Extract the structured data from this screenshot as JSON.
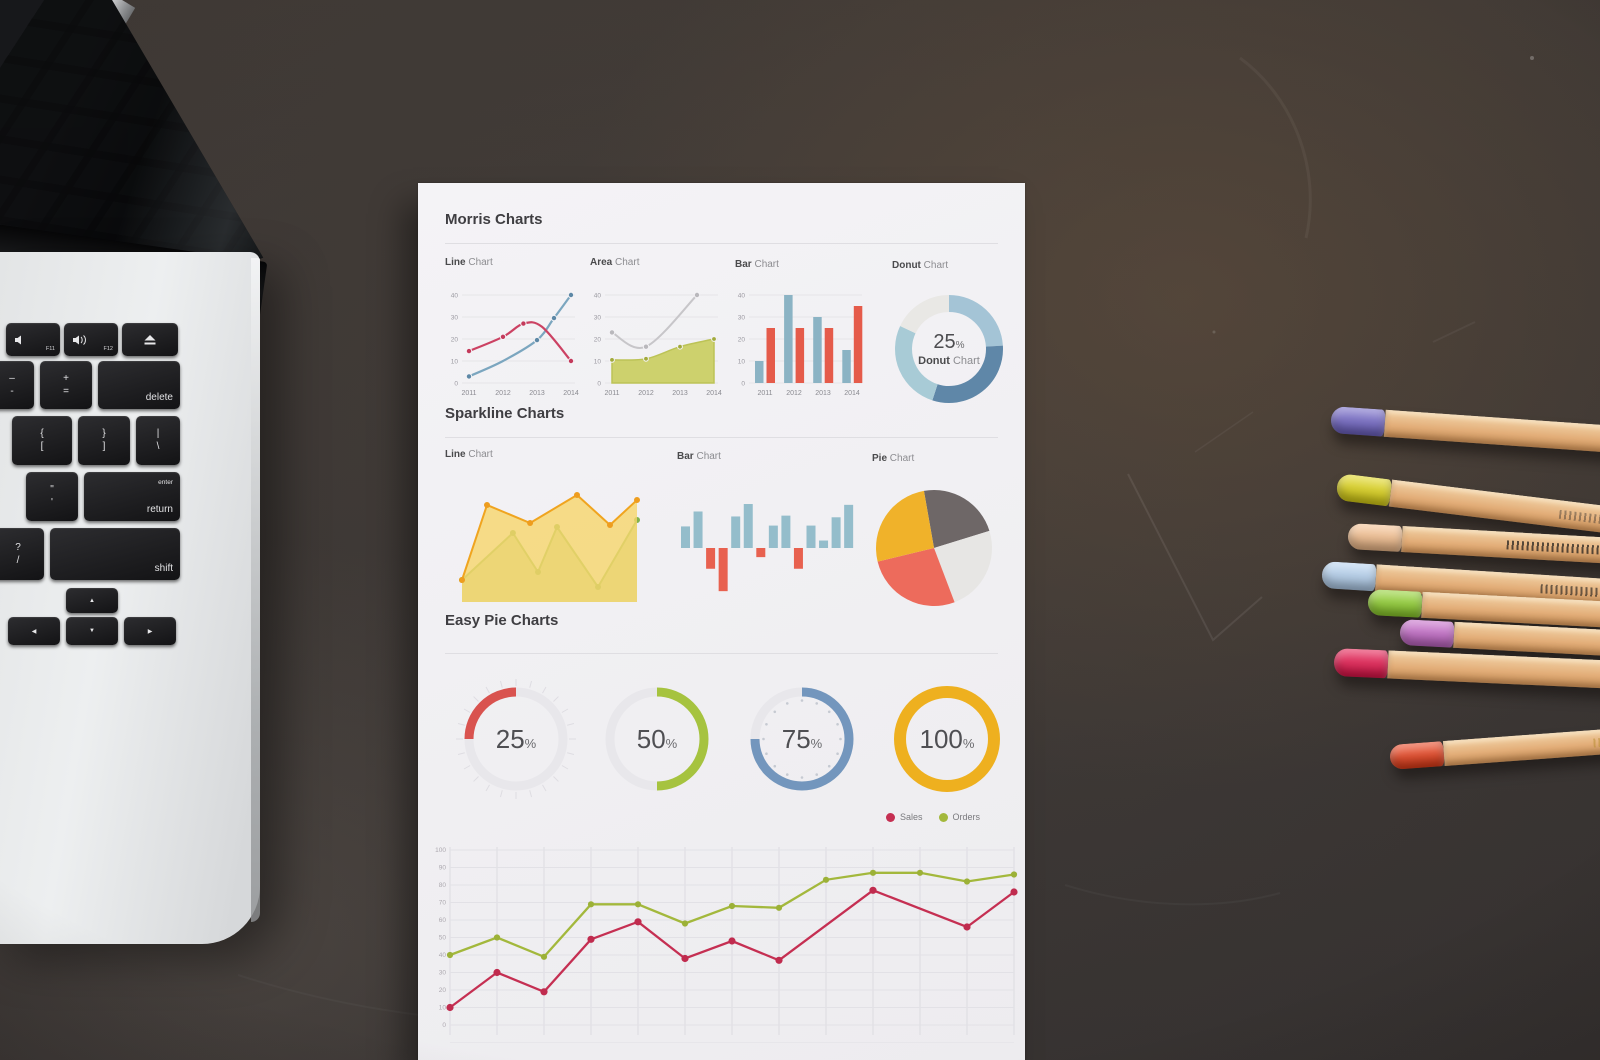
{
  "scene": {
    "desk_color": "#3e3834",
    "paper_color": "#f2f1f4"
  },
  "laptop": {
    "keys": {
      "f11": {
        "label": "F11",
        "icon": "volume-down-icon"
      },
      "f12": {
        "label": "F12",
        "icon": "volume-up-icon"
      },
      "eject": {
        "icon": "eject-icon"
      },
      "minus": {
        "top": "–",
        "bottom": "-"
      },
      "plus": {
        "top": "+",
        "bottom": "="
      },
      "delete": {
        "label": "delete"
      },
      "lbracket": {
        "top": "{",
        "bottom": "["
      },
      "rbracket": {
        "top": "}",
        "bottom": "]"
      },
      "backslash": {
        "top": "|",
        "bottom": "\\"
      },
      "quote": {
        "top": "\"",
        "bottom": "'"
      },
      "return": {
        "top": "enter",
        "label": "return"
      },
      "question": {
        "top": "?",
        "bottom": "/"
      },
      "shift": {
        "label": "shift"
      },
      "arrows": {
        "up": "▲",
        "down": "▼",
        "left": "◀",
        "right": "▶"
      }
    }
  },
  "sheet": {
    "sections": [
      {
        "title": "Morris Charts"
      },
      {
        "title": "Sparkline Charts"
      },
      {
        "title": "Easy Pie Charts"
      }
    ]
  },
  "pencils": [
    {
      "name": "purple",
      "cap": "#6f63c5"
    },
    {
      "name": "yellow",
      "cap": "#ded414"
    },
    {
      "name": "peach",
      "cap": "#f6bf8d"
    },
    {
      "name": "light-blue",
      "cap": "#b5d2f0"
    },
    {
      "name": "lime",
      "cap": "#8ed02b"
    },
    {
      "name": "orchid",
      "cap": "#c467c8"
    },
    {
      "name": "crimson",
      "cap": "#e5134a"
    },
    {
      "name": "scarlet",
      "cap": "#e83c17"
    }
  ],
  "chart_data": [
    {
      "type": "line",
      "title_bold": "Line",
      "title_rest": " Chart",
      "categories": [
        "2011",
        "2012",
        "2013",
        "2014"
      ],
      "yticks": [
        0,
        10,
        20,
        30,
        40
      ],
      "ylim": [
        0,
        40
      ],
      "grid": true,
      "series": [
        {
          "name": "blue",
          "color": "#7ba6bf",
          "marker_color": "#5d88a6",
          "points": [
            [
              2011,
              3,
              1
            ],
            [
              2012,
              10,
              0
            ],
            [
              2013,
              19.5,
              1
            ],
            [
              2013.5,
              29.5,
              1
            ],
            [
              2014,
              40,
              1
            ]
          ]
        },
        {
          "name": "red",
          "color": "#cc4263",
          "marker_color": "#c43a5b",
          "points": [
            [
              2011,
              14.5,
              1
            ],
            [
              2012,
              21,
              1
            ],
            [
              2012.6,
              27,
              1
            ],
            [
              2013.15,
              25.5,
              0
            ],
            [
              2014,
              10,
              1
            ]
          ]
        }
      ]
    },
    {
      "type": "area",
      "title_bold": "Area",
      "title_rest": " Chart",
      "categories": [
        "2011",
        "2012",
        "2013",
        "2014"
      ],
      "yticks": [
        0,
        10,
        20,
        30,
        40
      ],
      "ylim": [
        0,
        40
      ],
      "grid": true,
      "area_series": {
        "name": "olive",
        "fill": "#cdd16d",
        "line": "#bcc356",
        "marker_color": "#a2aa3c",
        "points": [
          [
            2011,
            10.5,
            1
          ],
          [
            2012,
            11,
            1
          ],
          [
            2013,
            16.5,
            1
          ],
          [
            2014,
            20,
            1
          ]
        ]
      },
      "line_series": {
        "name": "gray",
        "color": "#c7c6c9",
        "marker_color": "#b9b8bc",
        "points": [
          [
            2011,
            23,
            1
          ],
          [
            2012,
            16.5,
            1
          ],
          [
            2013.5,
            40,
            1
          ]
        ]
      }
    },
    {
      "type": "bar",
      "title_bold": "Bar",
      "title_rest": " Chart",
      "categories": [
        "2011",
        "2012",
        "2013",
        "2014"
      ],
      "yticks": [
        0,
        10,
        20,
        30,
        40
      ],
      "ylim": [
        0,
        40
      ],
      "grid": true,
      "series": [
        {
          "name": "blue",
          "color": "#8bb3c4",
          "values": [
            10,
            40,
            30,
            15
          ]
        },
        {
          "name": "red",
          "color": "#e55b4a",
          "values": [
            25,
            25,
            25,
            35
          ]
        }
      ]
    },
    {
      "type": "pie",
      "title_bold": "Donut",
      "title_rest": " Chart",
      "center": {
        "value": "25",
        "suffix": "%",
        "label_bold": "Donut",
        "label_rest": " Chart"
      },
      "segments": [
        {
          "color": "#a4c4d6",
          "pct": 24
        },
        {
          "color": "#5f87a8",
          "pct": 31
        },
        {
          "color": "#a8cbd6",
          "pct": 27
        },
        {
          "color": "#e9e8e5",
          "pct": 18
        }
      ]
    },
    {
      "type": "area",
      "title_bold": "Line",
      "title_rest": " Chart",
      "note": "sparkline dual area, x is 0-1 fraction, y is 0-10 scale",
      "series": [
        {
          "name": "green",
          "fill": "#c7d7a0",
          "line": "#8cb954",
          "marker_color": "#83b14c",
          "points": [
            [
              0,
              2.2
            ],
            [
              0.291,
              6.9
            ],
            [
              0.434,
              3.0
            ],
            [
              0.543,
              7.5
            ],
            [
              0.777,
              1.5
            ],
            [
              1,
              8.2
            ]
          ]
        },
        {
          "name": "yellow",
          "fill": "rgba(246,214,108,0.8)",
          "line": "#f0a41f",
          "marker_color": "#ee9d1e",
          "points": [
            [
              0,
              2.2
            ],
            [
              0.143,
              9.7
            ],
            [
              0.389,
              7.9
            ],
            [
              0.657,
              10.7
            ],
            [
              0.846,
              7.7
            ],
            [
              1,
              10.2
            ]
          ]
        }
      ]
    },
    {
      "type": "bar",
      "title_bold": "Bar",
      "title_rest": " Chart",
      "pos_color": "#94bdcb",
      "neg_color": "#e8614f",
      "values": [
        2.6,
        4.4,
        -2.5,
        -5.2,
        3.8,
        5.3,
        -1.1,
        2.7,
        3.9,
        -2.5,
        2.7,
        0.9,
        3.7,
        5.2
      ]
    },
    {
      "type": "pie",
      "title_bold": "Pie",
      "title_rest": " Chart",
      "start_deg": -10,
      "slices": [
        {
          "name": "dark-gray",
          "color": "#6e6767",
          "pct": 23
        },
        {
          "name": "light-gray",
          "color": "#e7e6e4",
          "pct": 24
        },
        {
          "name": "red",
          "color": "#ed6b5c",
          "pct": 27
        },
        {
          "name": "yellow",
          "color": "#f0b22a",
          "pct": 26
        }
      ]
    },
    {
      "type": "pie",
      "note": "easy pie progress rings",
      "suffix": "%",
      "track_color": "#e8e7eb",
      "items": [
        {
          "value": "25",
          "pct": 25,
          "color": "#d9534f",
          "from_deg": 270,
          "ticks": "outer"
        },
        {
          "value": "50",
          "pct": 50,
          "color": "#a6c33f",
          "from_deg": 0
        },
        {
          "value": "75",
          "pct": 75,
          "color": "#7396bd",
          "from_deg": 0,
          "ticks": "inner"
        },
        {
          "value": "100",
          "pct": 100,
          "color": "#eeb01f",
          "from_deg": 0
        }
      ]
    },
    {
      "type": "line",
      "yticks": [
        0,
        10,
        20,
        30,
        40,
        50,
        60,
        70,
        80,
        90,
        100
      ],
      "ylim": [
        0,
        100
      ],
      "grid": true,
      "legend_position": "top-right",
      "legend": [
        {
          "label": "Sales",
          "color": "#c52f52"
        },
        {
          "label": "Orders",
          "color": "#a3b83c"
        }
      ],
      "n_points": 13,
      "series": [
        {
          "name": "Orders",
          "color": "#a3b83c",
          "marker_color": "#9cb137",
          "x_idx": [
            0,
            1,
            2,
            3,
            4,
            5,
            6,
            7,
            8,
            9,
            10,
            11,
            12
          ],
          "values": [
            40,
            50,
            39,
            69,
            69,
            58,
            68,
            67,
            83,
            87,
            87,
            82,
            86
          ]
        },
        {
          "name": "Sales",
          "color": "#c52f52",
          "marker_color": "#c02b4e",
          "x_idx": [
            0,
            1,
            2,
            3,
            4,
            5,
            6,
            7,
            9,
            11,
            12
          ],
          "values": [
            10,
            30,
            19,
            49,
            59,
            38,
            48,
            37,
            77,
            56,
            76
          ]
        }
      ]
    }
  ]
}
